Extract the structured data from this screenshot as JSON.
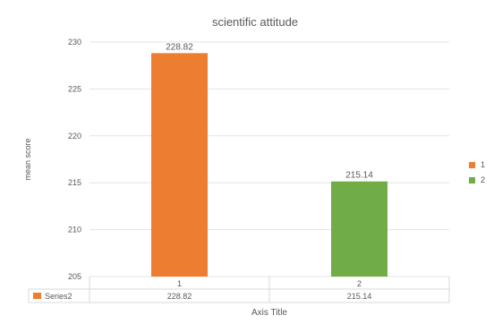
{
  "chart_data": {
    "type": "bar",
    "title": "scientific attitude",
    "xlabel": "Axis Title",
    "ylabel": "mean score",
    "categories": [
      "1",
      "2"
    ],
    "series": [
      {
        "name": "Series2",
        "values": [
          228.82,
          215.14
        ]
      }
    ],
    "data_labels": [
      "228.82",
      "215.14"
    ],
    "bar_colors": [
      "#ED7D31",
      "#70AD47"
    ],
    "ylim": [
      205,
      230
    ],
    "yticks": [
      205,
      210,
      215,
      220,
      225,
      230
    ],
    "grid": true,
    "legend": {
      "placement": "right",
      "entries": [
        {
          "label": "1",
          "color": "#ED7D31"
        },
        {
          "label": "2",
          "color": "#70AD47"
        }
      ]
    },
    "data_table": {
      "row_label": "Series2",
      "row_color": "#ED7D31",
      "values": [
        "228.82",
        "215.14"
      ]
    }
  }
}
